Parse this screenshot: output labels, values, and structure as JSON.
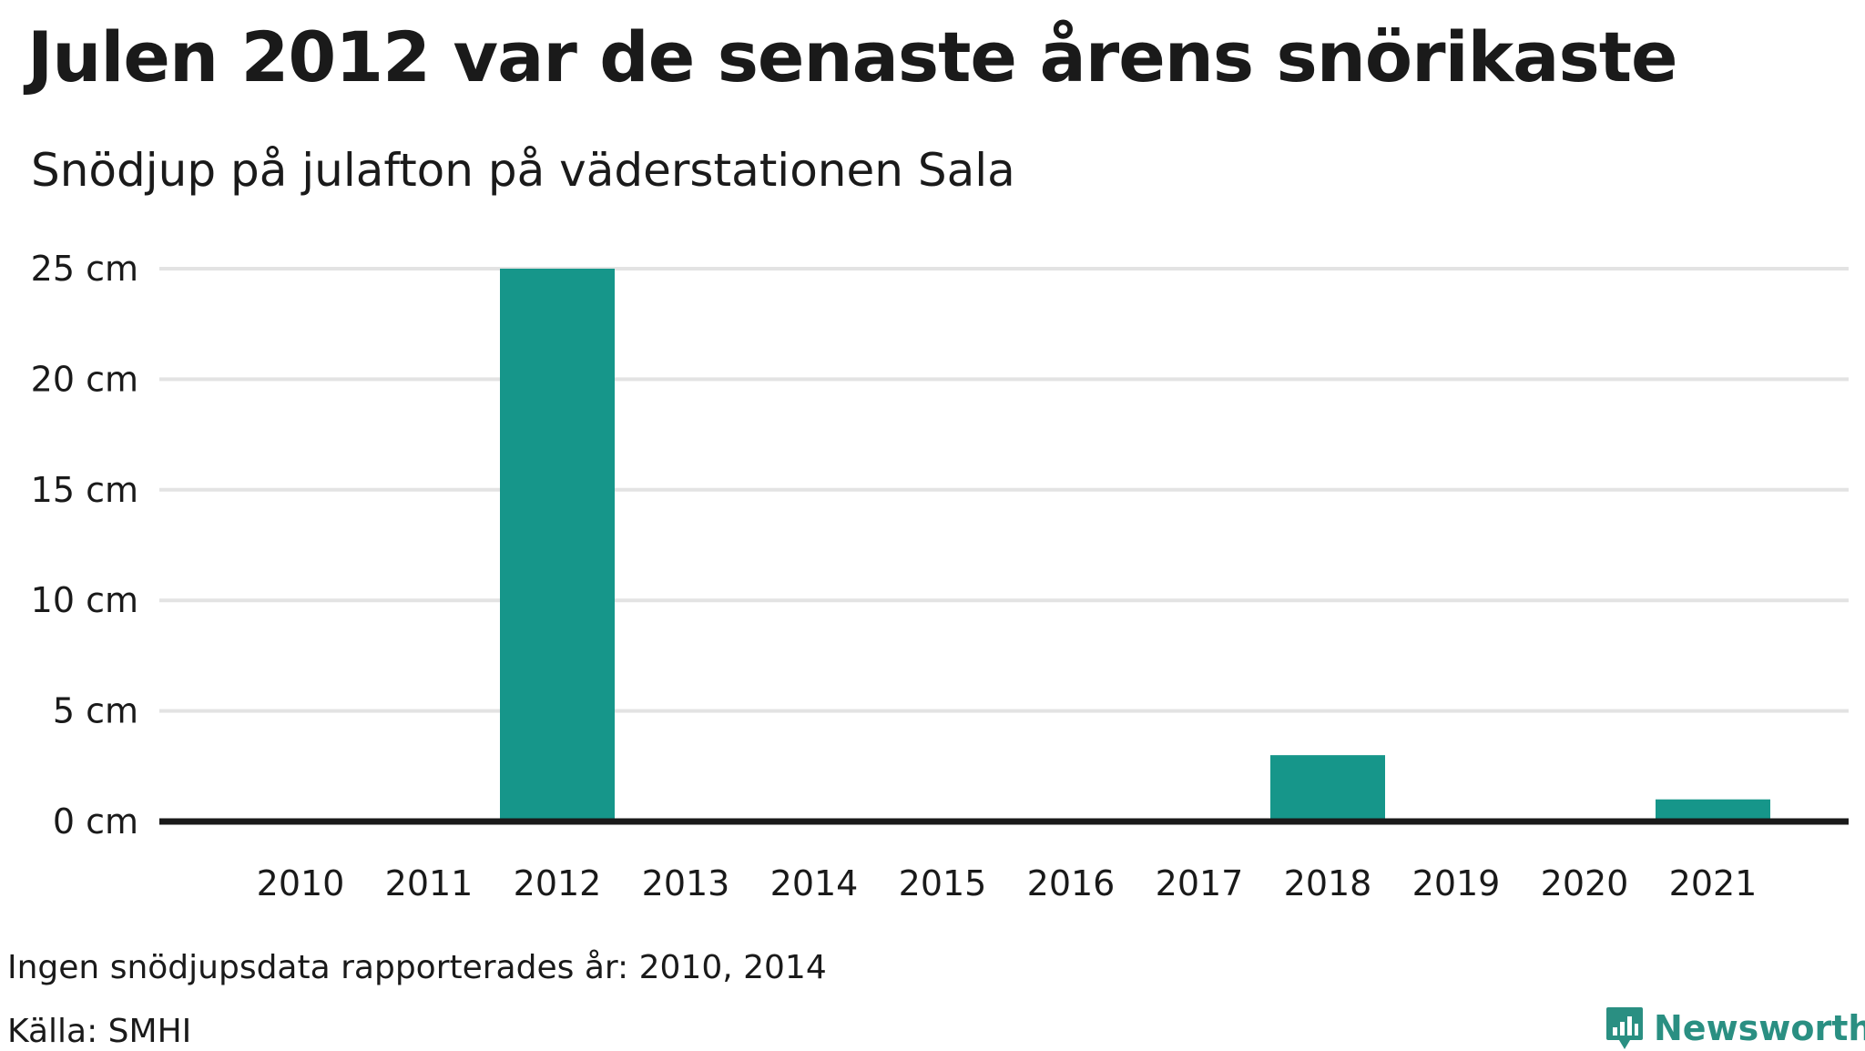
{
  "header": {
    "title": "Julen 2012 var de senaste årens snörikaste",
    "subtitle": "Snödjup på julafton på väderstationen Sala"
  },
  "footer": {
    "note": "Ingen snödjupsdata rapporterades år: 2010, 2014",
    "source": "Källa: SMHI",
    "logo_text": "Newsworthy"
  },
  "colors": {
    "bar": "#16968a",
    "grid": "#e3e3e3",
    "baseline": "#1a1a1a",
    "logo": "#2a8f82"
  },
  "chart_data": {
    "type": "bar",
    "title": "Julen 2012 var de senaste årens snörikaste",
    "subtitle": "Snödjup på julafton på väderstationen Sala",
    "categories": [
      "2010",
      "2011",
      "2012",
      "2013",
      "2014",
      "2015",
      "2016",
      "2017",
      "2018",
      "2019",
      "2020",
      "2021"
    ],
    "values": [
      null,
      0,
      25,
      0,
      null,
      0,
      0,
      0,
      3,
      0,
      0,
      1
    ],
    "ylim": [
      0,
      25
    ],
    "yticks": [
      0,
      5,
      10,
      15,
      20,
      25
    ],
    "ytick_labels": [
      "0 cm",
      "5 cm",
      "10 cm",
      "15 cm",
      "20 cm",
      "25 cm"
    ],
    "grid": true,
    "legend": "none"
  }
}
